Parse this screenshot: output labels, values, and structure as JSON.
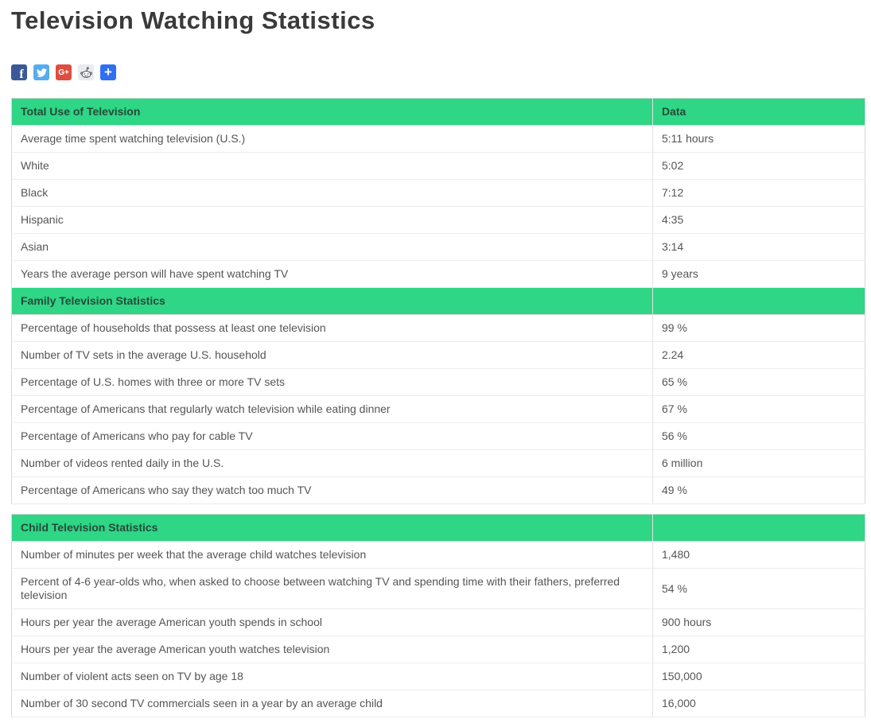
{
  "page": {
    "title": "Television Watching Statistics"
  },
  "share": {
    "icons": [
      {
        "name": "facebook",
        "label": "f",
        "color": "#3b5998"
      },
      {
        "name": "twitter",
        "label": "",
        "color": "#55acee"
      },
      {
        "name": "google-plus",
        "label": "G+",
        "color": "#dc4e41"
      },
      {
        "name": "reddit",
        "label": "",
        "color": "#e9ebee"
      },
      {
        "name": "share-plus",
        "label": "+",
        "color": "#2f6ff2"
      }
    ]
  },
  "theme": {
    "section_header_bg": "#2ed685",
    "section_header_text": "#27493a",
    "row_text": "#555555",
    "border": "#d8d8d8",
    "title_color": "#3a3a3a"
  },
  "tables": [
    {
      "sections": [
        {
          "title": "Total Use of Television",
          "data_header": "Data",
          "rows": [
            {
              "label": "Average time spent watching television (U.S.)",
              "value": "5:11 hours"
            },
            {
              "label": "White",
              "value": "5:02"
            },
            {
              "label": "Black",
              "value": "7:12"
            },
            {
              "label": "Hispanic",
              "value": "4:35"
            },
            {
              "label": "Asian",
              "value": "3:14"
            },
            {
              "label": "Years the average person will have spent watching TV",
              "value": "9 years"
            }
          ]
        },
        {
          "title": "Family Television Statistics",
          "data_header": "",
          "rows": [
            {
              "label": "Percentage of households that possess at least one television",
              "value": "99 %"
            },
            {
              "label": "Number of TV sets in the average U.S. household",
              "value": "2.24"
            },
            {
              "label": "Percentage of U.S. homes with three or more TV sets",
              "value": "65 %"
            },
            {
              "label": "Percentage of Americans that regularly watch television while eating dinner",
              "value": "67 %"
            },
            {
              "label": "Percentage of Americans who pay for cable TV",
              "value": "56 %"
            },
            {
              "label": "Number of videos rented daily in the U.S.",
              "value": "6 million"
            },
            {
              "label": "Percentage of Americans who say they watch too much TV",
              "value": "49 %"
            }
          ]
        }
      ]
    },
    {
      "sections": [
        {
          "title": "Child Television Statistics",
          "data_header": "",
          "rows": [
            {
              "label": "Number of minutes per week that the average child watches television",
              "value": "1,480"
            },
            {
              "label": "Percent of 4-6 year-olds who, when asked to choose between watching TV and spending time with their fathers, preferred television",
              "value": "54 %"
            },
            {
              "label": "Hours per year the average American youth spends in school",
              "value": "900 hours"
            },
            {
              "label": "Hours per year the average American youth watches television",
              "value": "1,200"
            },
            {
              "label": "Number of violent acts seen on TV by age 18",
              "value": "150,000"
            },
            {
              "label": "Number of 30 second TV commercials seen in a year by an average child",
              "value": "16,000"
            }
          ]
        }
      ]
    }
  ]
}
